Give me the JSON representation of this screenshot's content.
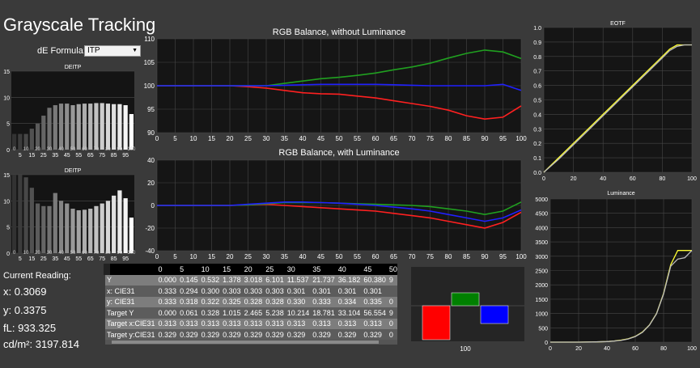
{
  "app": {
    "title": "Grayscale Tracking"
  },
  "de_formula": {
    "label": "dE Formula:",
    "value": "ITP"
  },
  "bar_chart_1": {
    "title": "DEITP"
  },
  "bar_chart_2": {
    "title": "DEITP"
  },
  "rgb_chart_1": {
    "title": "RGB Balance, without Luminance"
  },
  "rgb_chart_2": {
    "title": "RGB Balance, with Luminance"
  },
  "eotf_chart": {
    "title": "EOTF"
  },
  "lum_chart": {
    "title": "Luminance"
  },
  "reading": {
    "heading": "Current Reading:",
    "x": "x: 0.3069",
    "y": "y: 0.3375",
    "fl": "fL: 933.325",
    "cdm2": "cd/m²: 3197.814"
  },
  "color_box": {
    "label": "100",
    "colors": {
      "red": "#ff0000",
      "green": "#008000",
      "blue": "#0000ff"
    }
  },
  "table": {
    "headers": [
      "",
      "0",
      "5",
      "10",
      "15",
      "20",
      "25",
      "30",
      "35",
      "40",
      "45",
      "50"
    ],
    "rows": [
      {
        "label": "Y",
        "values": [
          "0.000",
          "0.145",
          "0.532",
          "1.378",
          "3.018",
          "6.101",
          "11.537",
          "21.737",
          "36.182",
          "60.380",
          "9"
        ]
      },
      {
        "label": "x: CIE31",
        "values": [
          "0.333",
          "0.294",
          "0.300",
          "0.303",
          "0.303",
          "0.303",
          "0.301",
          "0.301",
          "0.301",
          "0.301",
          ""
        ]
      },
      {
        "label": "y: CIE31",
        "values": [
          "0.333",
          "0.318",
          "0.322",
          "0.325",
          "0.328",
          "0.328",
          "0.330",
          "0.333",
          "0.334",
          "0.335",
          "0"
        ]
      },
      {
        "label": "Target Y",
        "values": [
          "0.000",
          "0.061",
          "0.328",
          "1.015",
          "2.465",
          "5.238",
          "10.214",
          "18.781",
          "33.104",
          "56.554",
          "9"
        ]
      },
      {
        "label": "Target x:CIE31",
        "values": [
          "0.313",
          "0.313",
          "0.313",
          "0.313",
          "0.313",
          "0.313",
          "0.313",
          "0.313",
          "0.313",
          "0.313",
          "0"
        ]
      },
      {
        "label": "Target y:CIE31",
        "values": [
          "0.329",
          "0.329",
          "0.329",
          "0.329",
          "0.329",
          "0.329",
          "0.329",
          "0.329",
          "0.329",
          "0.329",
          "0"
        ]
      }
    ]
  },
  "chart_data": [
    {
      "type": "bar",
      "title": "DEITP",
      "categories": [
        "0",
        "5",
        "10",
        "15",
        "20",
        "25",
        "30",
        "35",
        "40",
        "45",
        "50",
        "55",
        "60",
        "65",
        "70",
        "75",
        "80",
        "85",
        "90",
        "95",
        "100"
      ],
      "x_tick_labels": [
        "5",
        "15",
        "25",
        "35",
        "45",
        "55",
        "65",
        "75",
        "85",
        "95"
      ],
      "x_tick_labels_2": [
        "0",
        "10",
        "20",
        "30",
        "40",
        "50",
        "60",
        "70",
        "80",
        "90",
        "100"
      ],
      "values": [
        3,
        3,
        3,
        4,
        5,
        6.5,
        8,
        8.5,
        8.8,
        8.8,
        8.5,
        8.7,
        8.8,
        8.8,
        8.9,
        8.9,
        8.8,
        8.7,
        8.7,
        8.5,
        6.8
      ],
      "ylim": [
        0,
        15
      ],
      "yticks": [
        0,
        5,
        10,
        15
      ]
    },
    {
      "type": "bar",
      "title": "DEITP",
      "categories": [
        "0",
        "5",
        "10",
        "15",
        "20",
        "25",
        "30",
        "35",
        "40",
        "45",
        "50",
        "55",
        "60",
        "65",
        "70",
        "75",
        "80",
        "85",
        "90",
        "95",
        "100"
      ],
      "x_tick_labels": [
        "5",
        "15",
        "25",
        "35",
        "45",
        "55",
        "65",
        "75",
        "85",
        "95"
      ],
      "x_tick_labels_2": [
        "0",
        "10",
        "20",
        "30",
        "40",
        "50",
        "60",
        "70",
        "80",
        "90",
        "100"
      ],
      "values": [
        15,
        15,
        14.5,
        12.5,
        9.5,
        9,
        9,
        11.5,
        10,
        9.5,
        8.5,
        8.2,
        8.3,
        8.5,
        9,
        9.5,
        10,
        11,
        12,
        10.5,
        6.8
      ],
      "ylim": [
        0,
        15
      ],
      "yticks": [
        0,
        5,
        10,
        15
      ]
    },
    {
      "type": "line",
      "title": "RGB Balance, without Luminance",
      "x": [
        0,
        5,
        10,
        15,
        20,
        25,
        30,
        35,
        40,
        45,
        50,
        55,
        60,
        65,
        70,
        75,
        80,
        85,
        90,
        95,
        100
      ],
      "ylim": [
        90,
        110
      ],
      "yticks": [
        90,
        95,
        100,
        105,
        110
      ],
      "series": [
        {
          "color": "#ff2020",
          "values": [
            100,
            100,
            100,
            100,
            100,
            99.8,
            99.5,
            99,
            98.5,
            98.3,
            98.2,
            97.8,
            97.4,
            96.8,
            96.2,
            95.6,
            94.8,
            93.6,
            92.9,
            93.3,
            95.7
          ]
        },
        {
          "color": "#20a020",
          "values": [
            100,
            100,
            100,
            100,
            100,
            100,
            100,
            100.5,
            101,
            101.5,
            101.8,
            102.2,
            102.7,
            103.4,
            104,
            104.8,
            105.9,
            106.9,
            107.6,
            107.2,
            105.8
          ]
        },
        {
          "color": "#2020ff",
          "values": [
            100,
            100,
            100,
            100,
            100,
            100,
            100,
            100.1,
            100.2,
            100.3,
            100.3,
            100.3,
            100.3,
            100.2,
            100.1,
            100,
            100,
            100,
            100,
            100.3,
            99
          ]
        }
      ]
    },
    {
      "type": "line",
      "title": "RGB Balance, with Luminance",
      "x": [
        0,
        5,
        10,
        15,
        20,
        25,
        30,
        35,
        40,
        45,
        50,
        55,
        60,
        65,
        70,
        75,
        80,
        85,
        90,
        95,
        100
      ],
      "ylim": [
        -40,
        40
      ],
      "yticks": [
        -40,
        -20,
        0,
        20,
        40
      ],
      "series": [
        {
          "color": "#ff2020",
          "values": [
            0,
            0,
            0,
            0,
            0,
            0.5,
            1,
            0,
            -1,
            -2,
            -3,
            -4,
            -5,
            -7,
            -9,
            -11,
            -14,
            -17,
            -20,
            -15,
            -6
          ]
        },
        {
          "color": "#20a020",
          "values": [
            0,
            0,
            0,
            0,
            0,
            0.5,
            1.5,
            2.5,
            2.5,
            2.5,
            2,
            1.5,
            1,
            0.5,
            0,
            -1,
            -3,
            -5,
            -8,
            -5,
            3
          ]
        },
        {
          "color": "#2020ff",
          "values": [
            0,
            0,
            0,
            0,
            0,
            1,
            2,
            3,
            3,
            2.5,
            2,
            1,
            0,
            -1.5,
            -3,
            -5,
            -8,
            -11,
            -14,
            -11,
            -4
          ]
        }
      ]
    },
    {
      "type": "line",
      "title": "EOTF",
      "x": [
        0,
        10,
        20,
        30,
        40,
        50,
        60,
        70,
        80,
        85,
        90,
        95,
        100
      ],
      "xlim": [
        0,
        100
      ],
      "xticks": [
        0,
        20,
        40,
        60,
        80,
        100
      ],
      "ylim": [
        0,
        1
      ],
      "yticks": [
        0,
        0.1,
        0.2,
        0.3,
        0.4,
        0.5,
        0.6,
        0.7,
        0.8,
        0.9,
        1
      ],
      "series": [
        {
          "color": "#ffff33",
          "values": [
            0,
            0.1,
            0.2,
            0.3,
            0.4,
            0.5,
            0.6,
            0.7,
            0.8,
            0.85,
            0.88,
            0.88,
            0.88
          ]
        },
        {
          "color": "#bcbcbc",
          "values": [
            0,
            0.09,
            0.19,
            0.29,
            0.39,
            0.49,
            0.59,
            0.69,
            0.79,
            0.84,
            0.87,
            0.88,
            0.88
          ]
        }
      ]
    },
    {
      "type": "line",
      "title": "Luminance",
      "x": [
        0,
        20,
        30,
        40,
        45,
        50,
        55,
        60,
        65,
        70,
        75,
        80,
        85,
        90,
        95,
        100
      ],
      "xlim": [
        0,
        100
      ],
      "xticks": [
        0,
        20,
        40,
        60,
        80,
        100
      ],
      "ylim": [
        0,
        5000
      ],
      "yticks": [
        0,
        500,
        1000,
        1500,
        2000,
        2500,
        3000,
        3500,
        4000,
        4500,
        5000
      ],
      "series": [
        {
          "color": "#ffff33",
          "values": [
            0,
            1,
            6,
            20,
            40,
            70,
            115,
            200,
            350,
            600,
            1000,
            1700,
            2700,
            3200,
            3200,
            3200
          ]
        },
        {
          "color": "#bcbcbc",
          "values": [
            0,
            1,
            6,
            19,
            38,
            60,
            110,
            195,
            340,
            590,
            990,
            1680,
            2650,
            2900,
            2950,
            3200
          ]
        }
      ]
    }
  ]
}
